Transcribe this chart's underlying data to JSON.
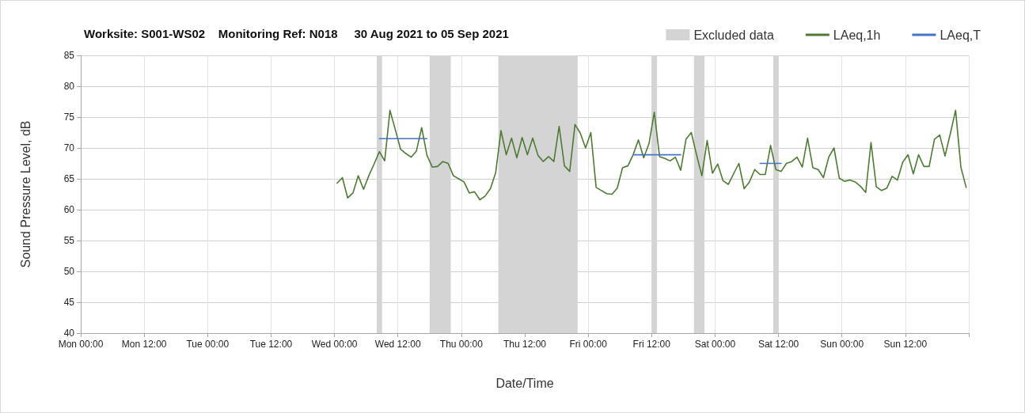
{
  "chart_data": {
    "type": "line",
    "title": "Worksite: S001-WS02    Monitoring Ref: N018     30 Aug 2021 to 05 Sep 2021",
    "xlabel": "Date/Time",
    "ylabel": "Sound Pressure Level, dB",
    "xlim": [
      "2021-08-30T00:00",
      "2021-09-06T00:00"
    ],
    "xticks": [
      {
        "value": "2021-08-30T00:00",
        "label": "Mon 00:00"
      },
      {
        "value": "2021-08-30T12:00",
        "label": "Mon 12:00"
      },
      {
        "value": "2021-08-31T00:00",
        "label": "Tue 00:00"
      },
      {
        "value": "2021-08-31T12:00",
        "label": "Tue 12:00"
      },
      {
        "value": "2021-09-01T00:00",
        "label": "Wed 00:00"
      },
      {
        "value": "2021-09-01T12:00",
        "label": "Wed 12:00"
      },
      {
        "value": "2021-09-02T00:00",
        "label": "Thu 00:00"
      },
      {
        "value": "2021-09-02T12:00",
        "label": "Thu 12:00"
      },
      {
        "value": "2021-09-03T00:00",
        "label": "Fri 00:00"
      },
      {
        "value": "2021-09-03T12:00",
        "label": "Fri 12:00"
      },
      {
        "value": "2021-09-04T00:00",
        "label": "Sat 00:00"
      },
      {
        "value": "2021-09-04T12:00",
        "label": "Sat 12:00"
      },
      {
        "value": "2021-09-05T00:00",
        "label": "Sun 00:00"
      },
      {
        "value": "2021-09-05T12:00",
        "label": "Sun 12:00"
      },
      {
        "value": "2021-09-06T00:00",
        "label": null
      }
    ],
    "ylim": [
      40,
      85
    ],
    "yticks": [
      40,
      45,
      50,
      55,
      60,
      65,
      70,
      75,
      80,
      85
    ],
    "grid": true,
    "legend": "top right",
    "marker": "none",
    "line_style": "solid",
    "bands": [
      {
        "axis": "x",
        "from": "2021-09-01T08:00",
        "to": "2021-09-01T09:00",
        "label": "Excluded data",
        "color": "#d4d4d4"
      },
      {
        "axis": "x",
        "from": "2021-09-01T18:00",
        "to": "2021-09-01T22:00",
        "color": "#d4d4d4"
      },
      {
        "axis": "x",
        "from": "2021-09-02T07:00",
        "to": "2021-09-02T22:00",
        "color": "#d4d4d4"
      },
      {
        "axis": "x",
        "from": "2021-09-03T12:00",
        "to": "2021-09-03T13:00",
        "color": "#d4d4d4"
      },
      {
        "axis": "x",
        "from": "2021-09-03T20:00",
        "to": "2021-09-03T22:00",
        "color": "#d4d4d4"
      },
      {
        "axis": "x",
        "from": "2021-09-04T11:00",
        "to": "2021-09-04T12:00",
        "color": "#d4d4d4"
      }
    ],
    "series": [
      {
        "name": "LAeq,1h",
        "color": "#4f7a35",
        "x": [
          "2021-09-01T00:30",
          "2021-09-01T01:30",
          "2021-09-01T02:30",
          "2021-09-01T03:30",
          "2021-09-01T04:30",
          "2021-09-01T05:30",
          "2021-09-01T06:30",
          "2021-09-01T07:30",
          "2021-09-01T08:30",
          "2021-09-01T09:30",
          "2021-09-01T10:30",
          "2021-09-01T11:30",
          "2021-09-01T12:30",
          "2021-09-01T13:30",
          "2021-09-01T14:30",
          "2021-09-01T15:30",
          "2021-09-01T16:30",
          "2021-09-01T17:30",
          "2021-09-01T18:30",
          "2021-09-01T19:30",
          "2021-09-01T20:30",
          "2021-09-01T21:30",
          "2021-09-01T22:30",
          "2021-09-01T23:30",
          "2021-09-02T00:30",
          "2021-09-02T01:30",
          "2021-09-02T02:30",
          "2021-09-02T03:30",
          "2021-09-02T04:30",
          "2021-09-02T05:30",
          "2021-09-02T06:30",
          "2021-09-02T07:30",
          "2021-09-02T08:30",
          "2021-09-02T09:30",
          "2021-09-02T10:30",
          "2021-09-02T11:30",
          "2021-09-02T12:30",
          "2021-09-02T13:30",
          "2021-09-02T14:30",
          "2021-09-02T15:30",
          "2021-09-02T16:30",
          "2021-09-02T17:30",
          "2021-09-02T18:30",
          "2021-09-02T19:30",
          "2021-09-02T20:30",
          "2021-09-02T21:30",
          "2021-09-02T22:30",
          "2021-09-02T23:30",
          "2021-09-03T00:30",
          "2021-09-03T01:30",
          "2021-09-03T02:30",
          "2021-09-03T03:30",
          "2021-09-03T04:30",
          "2021-09-03T05:30",
          "2021-09-03T06:30",
          "2021-09-03T07:30",
          "2021-09-03T08:30",
          "2021-09-03T09:30",
          "2021-09-03T10:30",
          "2021-09-03T11:30",
          "2021-09-03T12:30",
          "2021-09-03T13:30",
          "2021-09-03T14:30",
          "2021-09-03T15:30",
          "2021-09-03T16:30",
          "2021-09-03T17:30",
          "2021-09-03T18:30",
          "2021-09-03T19:30",
          "2021-09-03T20:30",
          "2021-09-03T21:30",
          "2021-09-03T22:30",
          "2021-09-03T23:30",
          "2021-09-04T00:30",
          "2021-09-04T01:30",
          "2021-09-04T02:30",
          "2021-09-04T03:30",
          "2021-09-04T04:30",
          "2021-09-04T05:30",
          "2021-09-04T06:30",
          "2021-09-04T07:30",
          "2021-09-04T08:30",
          "2021-09-04T09:30",
          "2021-09-04T10:30",
          "2021-09-04T11:30",
          "2021-09-04T12:30",
          "2021-09-04T13:30",
          "2021-09-04T14:30",
          "2021-09-04T15:30",
          "2021-09-04T16:30",
          "2021-09-04T17:30",
          "2021-09-04T18:30",
          "2021-09-04T19:30",
          "2021-09-04T20:30",
          "2021-09-04T21:30",
          "2021-09-04T22:30",
          "2021-09-04T23:30",
          "2021-09-05T00:30",
          "2021-09-05T01:30",
          "2021-09-05T02:30",
          "2021-09-05T03:30",
          "2021-09-05T04:30",
          "2021-09-05T05:30",
          "2021-09-05T06:30",
          "2021-09-05T07:30",
          "2021-09-05T08:30",
          "2021-09-05T09:30",
          "2021-09-05T10:30",
          "2021-09-05T11:30",
          "2021-09-05T12:30",
          "2021-09-05T13:30",
          "2021-09-05T14:30",
          "2021-09-05T15:30",
          "2021-09-05T16:30",
          "2021-09-05T17:30",
          "2021-09-05T18:30",
          "2021-09-05T19:30",
          "2021-09-05T20:30",
          "2021-09-05T21:30",
          "2021-09-05T22:30",
          "2021-09-05T23:30"
        ],
        "values": [
          64.3,
          65.2,
          61.9,
          62.7,
          65.5,
          63.3,
          65.5,
          67.4,
          69.4,
          67.9,
          76.1,
          73.0,
          69.8,
          69.1,
          68.5,
          69.5,
          73.3,
          68.8,
          66.9,
          67.0,
          67.8,
          67.5,
          65.5,
          65.0,
          64.5,
          62.7,
          62.9,
          61.6,
          62.2,
          63.4,
          66.0,
          72.8,
          68.9,
          71.6,
          68.4,
          71.7,
          68.9,
          71.6,
          68.8,
          67.8,
          68.6,
          67.8,
          73.5,
          67.1,
          66.2,
          73.8,
          72.4,
          70.0,
          72.5,
          63.6,
          63.1,
          62.6,
          62.5,
          63.5,
          66.8,
          67.1,
          68.9,
          71.3,
          68.4,
          70.7,
          75.8,
          68.6,
          68.3,
          67.9,
          68.5,
          66.4,
          71.4,
          72.5,
          68.9,
          65.5,
          71.2,
          65.9,
          67.4,
          64.7,
          64.1,
          65.8,
          67.5,
          63.4,
          64.5,
          66.5,
          65.7,
          65.7,
          70.4,
          66.5,
          66.2,
          67.5,
          67.8,
          68.5,
          66.9,
          71.6,
          66.8,
          66.5,
          65.2,
          68.5,
          70.0,
          65.1,
          64.6,
          64.8,
          64.5,
          63.8,
          62.8,
          70.9,
          63.7,
          63.1,
          63.5,
          65.4,
          64.8,
          67.7,
          68.9,
          65.8,
          68.9,
          67.0,
          67.0,
          71.4,
          72.1,
          68.7,
          72.3,
          76.1,
          66.9,
          63.6
        ]
      },
      {
        "name": "LAeq,T",
        "color": "#4472c4",
        "x": [
          "2021-09-01T08:30",
          "2021-09-01T17:30",
          "2021-09-02T13:00",
          "2021-09-03T08:30",
          "2021-09-03T17:30",
          "2021-09-04T00:00",
          "2021-09-04T08:30",
          "2021-09-04T12:30"
        ],
        "values": [
          71.5,
          71.5,
          null,
          68.9,
          68.9,
          null,
          67.5,
          67.5
        ]
      }
    ]
  }
}
